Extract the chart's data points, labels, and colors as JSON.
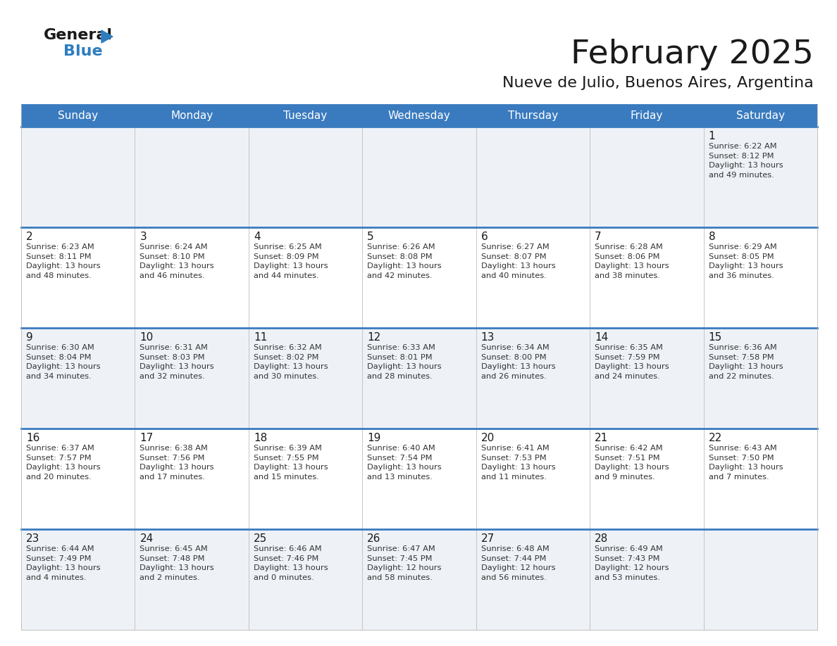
{
  "title": "February 2025",
  "subtitle": "Nueve de Julio, Buenos Aires, Argentina",
  "header_color": "#3a7bbf",
  "header_text_color": "#ffffff",
  "cell_bg_light": "#eef2f7",
  "cell_bg_white": "#ffffff",
  "grid_line_color": "#3a7bbf",
  "cell_border_color": "#bbbbbb",
  "day_headers": [
    "Sunday",
    "Monday",
    "Tuesday",
    "Wednesday",
    "Thursday",
    "Friday",
    "Saturday"
  ],
  "logo_color1": "#1a1a1a",
  "logo_color2": "#2e7dbf",
  "logo_triangle_color": "#2e7dbf",
  "calendar": [
    [
      {
        "day": "",
        "info": ""
      },
      {
        "day": "",
        "info": ""
      },
      {
        "day": "",
        "info": ""
      },
      {
        "day": "",
        "info": ""
      },
      {
        "day": "",
        "info": ""
      },
      {
        "day": "",
        "info": ""
      },
      {
        "day": "1",
        "info": "Sunrise: 6:22 AM\nSunset: 8:12 PM\nDaylight: 13 hours\nand 49 minutes."
      }
    ],
    [
      {
        "day": "2",
        "info": "Sunrise: 6:23 AM\nSunset: 8:11 PM\nDaylight: 13 hours\nand 48 minutes."
      },
      {
        "day": "3",
        "info": "Sunrise: 6:24 AM\nSunset: 8:10 PM\nDaylight: 13 hours\nand 46 minutes."
      },
      {
        "day": "4",
        "info": "Sunrise: 6:25 AM\nSunset: 8:09 PM\nDaylight: 13 hours\nand 44 minutes."
      },
      {
        "day": "5",
        "info": "Sunrise: 6:26 AM\nSunset: 8:08 PM\nDaylight: 13 hours\nand 42 minutes."
      },
      {
        "day": "6",
        "info": "Sunrise: 6:27 AM\nSunset: 8:07 PM\nDaylight: 13 hours\nand 40 minutes."
      },
      {
        "day": "7",
        "info": "Sunrise: 6:28 AM\nSunset: 8:06 PM\nDaylight: 13 hours\nand 38 minutes."
      },
      {
        "day": "8",
        "info": "Sunrise: 6:29 AM\nSunset: 8:05 PM\nDaylight: 13 hours\nand 36 minutes."
      }
    ],
    [
      {
        "day": "9",
        "info": "Sunrise: 6:30 AM\nSunset: 8:04 PM\nDaylight: 13 hours\nand 34 minutes."
      },
      {
        "day": "10",
        "info": "Sunrise: 6:31 AM\nSunset: 8:03 PM\nDaylight: 13 hours\nand 32 minutes."
      },
      {
        "day": "11",
        "info": "Sunrise: 6:32 AM\nSunset: 8:02 PM\nDaylight: 13 hours\nand 30 minutes."
      },
      {
        "day": "12",
        "info": "Sunrise: 6:33 AM\nSunset: 8:01 PM\nDaylight: 13 hours\nand 28 minutes."
      },
      {
        "day": "13",
        "info": "Sunrise: 6:34 AM\nSunset: 8:00 PM\nDaylight: 13 hours\nand 26 minutes."
      },
      {
        "day": "14",
        "info": "Sunrise: 6:35 AM\nSunset: 7:59 PM\nDaylight: 13 hours\nand 24 minutes."
      },
      {
        "day": "15",
        "info": "Sunrise: 6:36 AM\nSunset: 7:58 PM\nDaylight: 13 hours\nand 22 minutes."
      }
    ],
    [
      {
        "day": "16",
        "info": "Sunrise: 6:37 AM\nSunset: 7:57 PM\nDaylight: 13 hours\nand 20 minutes."
      },
      {
        "day": "17",
        "info": "Sunrise: 6:38 AM\nSunset: 7:56 PM\nDaylight: 13 hours\nand 17 minutes."
      },
      {
        "day": "18",
        "info": "Sunrise: 6:39 AM\nSunset: 7:55 PM\nDaylight: 13 hours\nand 15 minutes."
      },
      {
        "day": "19",
        "info": "Sunrise: 6:40 AM\nSunset: 7:54 PM\nDaylight: 13 hours\nand 13 minutes."
      },
      {
        "day": "20",
        "info": "Sunrise: 6:41 AM\nSunset: 7:53 PM\nDaylight: 13 hours\nand 11 minutes."
      },
      {
        "day": "21",
        "info": "Sunrise: 6:42 AM\nSunset: 7:51 PM\nDaylight: 13 hours\nand 9 minutes."
      },
      {
        "day": "22",
        "info": "Sunrise: 6:43 AM\nSunset: 7:50 PM\nDaylight: 13 hours\nand 7 minutes."
      }
    ],
    [
      {
        "day": "23",
        "info": "Sunrise: 6:44 AM\nSunset: 7:49 PM\nDaylight: 13 hours\nand 4 minutes."
      },
      {
        "day": "24",
        "info": "Sunrise: 6:45 AM\nSunset: 7:48 PM\nDaylight: 13 hours\nand 2 minutes."
      },
      {
        "day": "25",
        "info": "Sunrise: 6:46 AM\nSunset: 7:46 PM\nDaylight: 13 hours\nand 0 minutes."
      },
      {
        "day": "26",
        "info": "Sunrise: 6:47 AM\nSunset: 7:45 PM\nDaylight: 12 hours\nand 58 minutes."
      },
      {
        "day": "27",
        "info": "Sunrise: 6:48 AM\nSunset: 7:44 PM\nDaylight: 12 hours\nand 56 minutes."
      },
      {
        "day": "28",
        "info": "Sunrise: 6:49 AM\nSunset: 7:43 PM\nDaylight: 12 hours\nand 53 minutes."
      },
      {
        "day": "",
        "info": ""
      }
    ]
  ]
}
